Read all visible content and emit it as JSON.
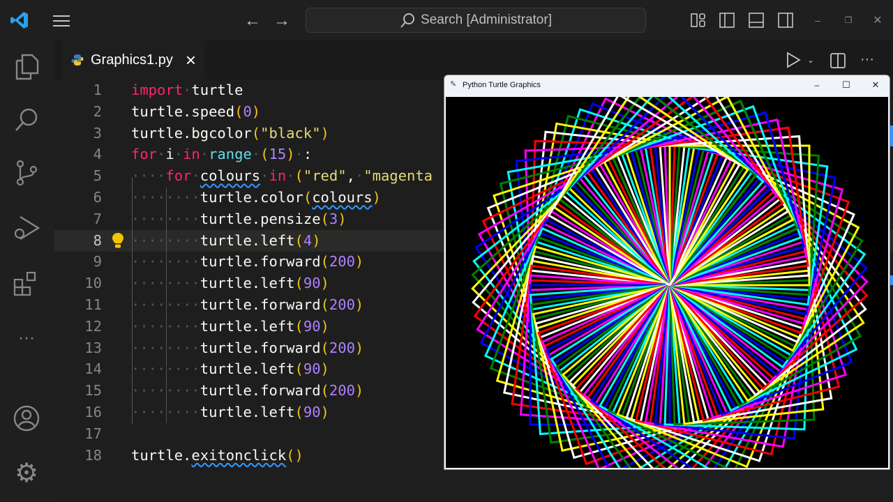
{
  "titlebar": {
    "search_placeholder": "Search [Administrator]"
  },
  "tab": {
    "filename": "Graphics1.py",
    "close": "×"
  },
  "code": [
    {
      "n": "1",
      "html": "<span class='kw'>import</span><span class='dot'>·</span>turtle"
    },
    {
      "n": "2",
      "html": "turtle.speed<span class='par'>(</span><span class='num'>0</span><span class='par'>)</span>"
    },
    {
      "n": "3",
      "html": "turtle.bgcolor<span class='par'>(</span><span class='str'>\"black\"</span><span class='par'>)</span>"
    },
    {
      "n": "4",
      "html": "<span class='kw'>for</span><span class='dot'>·</span>i<span class='dot'>·</span><span class='kw'>in</span><span class='dot'>·</span><span class='fn'>range</span><span class='dot'>·</span><span class='par'>(</span><span class='num'>15</span><span class='par'>)</span><span class='dot'>·</span>:"
    },
    {
      "n": "5",
      "html": "<span class='dot'>····</span><span class='kw'>for</span><span class='dot'>·</span><span class='sq'>colours</span><span class='dot'>·</span><span class='kw'>in</span><span class='dot'>·</span><span class='par'>(</span><span class='str'>\"red\"</span>,<span class='dot'>·</span><span class='str'>\"magenta</span>"
    },
    {
      "n": "6",
      "html": "<span class='dot'>········</span>turtle.color<span class='par'>(</span><span class='sq'>colours</span><span class='par'>)</span>"
    },
    {
      "n": "7",
      "html": "<span class='dot'>········</span>turtle.pensize<span class='par'>(</span><span class='num'>3</span><span class='par'>)</span>"
    },
    {
      "n": "8",
      "html": "<span class='dot'>········</span>turtle.left<span class='par'>(</span><span class='num'>4</span><span class='par'>)</span>"
    },
    {
      "n": "9",
      "html": "<span class='dot'>········</span>turtle.forward<span class='par'>(</span><span class='num'>200</span><span class='par'>)</span>"
    },
    {
      "n": "10",
      "html": "<span class='dot'>········</span>turtle.left<span class='par'>(</span><span class='num'>90</span><span class='par'>)</span>"
    },
    {
      "n": "11",
      "html": "<span class='dot'>········</span>turtle.forward<span class='par'>(</span><span class='num'>200</span><span class='par'>)</span>"
    },
    {
      "n": "12",
      "html": "<span class='dot'>········</span>turtle.left<span class='par'>(</span><span class='num'>90</span><span class='par'>)</span>"
    },
    {
      "n": "13",
      "html": "<span class='dot'>········</span>turtle.forward<span class='par'>(</span><span class='num'>200</span><span class='par'>)</span>"
    },
    {
      "n": "14",
      "html": "<span class='dot'>········</span>turtle.left<span class='par'>(</span><span class='num'>90</span><span class='par'>)</span>"
    },
    {
      "n": "15",
      "html": "<span class='dot'>········</span>turtle.forward<span class='par'>(</span><span class='num'>200</span><span class='par'>)</span>"
    },
    {
      "n": "16",
      "html": "<span class='dot'>········</span>turtle.left<span class='par'>(</span><span class='num'>90</span><span class='par'>)</span>"
    },
    {
      "n": "17",
      "html": ""
    },
    {
      "n": "18",
      "html": "turtle.<span class='sq'>exitonclick</span><span class='par'>()</span>"
    }
  ],
  "current_line": "8",
  "turtle_window": {
    "title": "Python Turtle Graphics",
    "minimize": "–",
    "maximize": "☐",
    "close": "✕"
  },
  "drawing": {
    "palette": [
      "#ff0000",
      "#ff00ff",
      "#0000ff",
      "#00ffff",
      "#008000",
      "#ffff00",
      "#ffffff"
    ],
    "iterations": 15,
    "turn": 4,
    "side": 200,
    "pensize": 3
  }
}
